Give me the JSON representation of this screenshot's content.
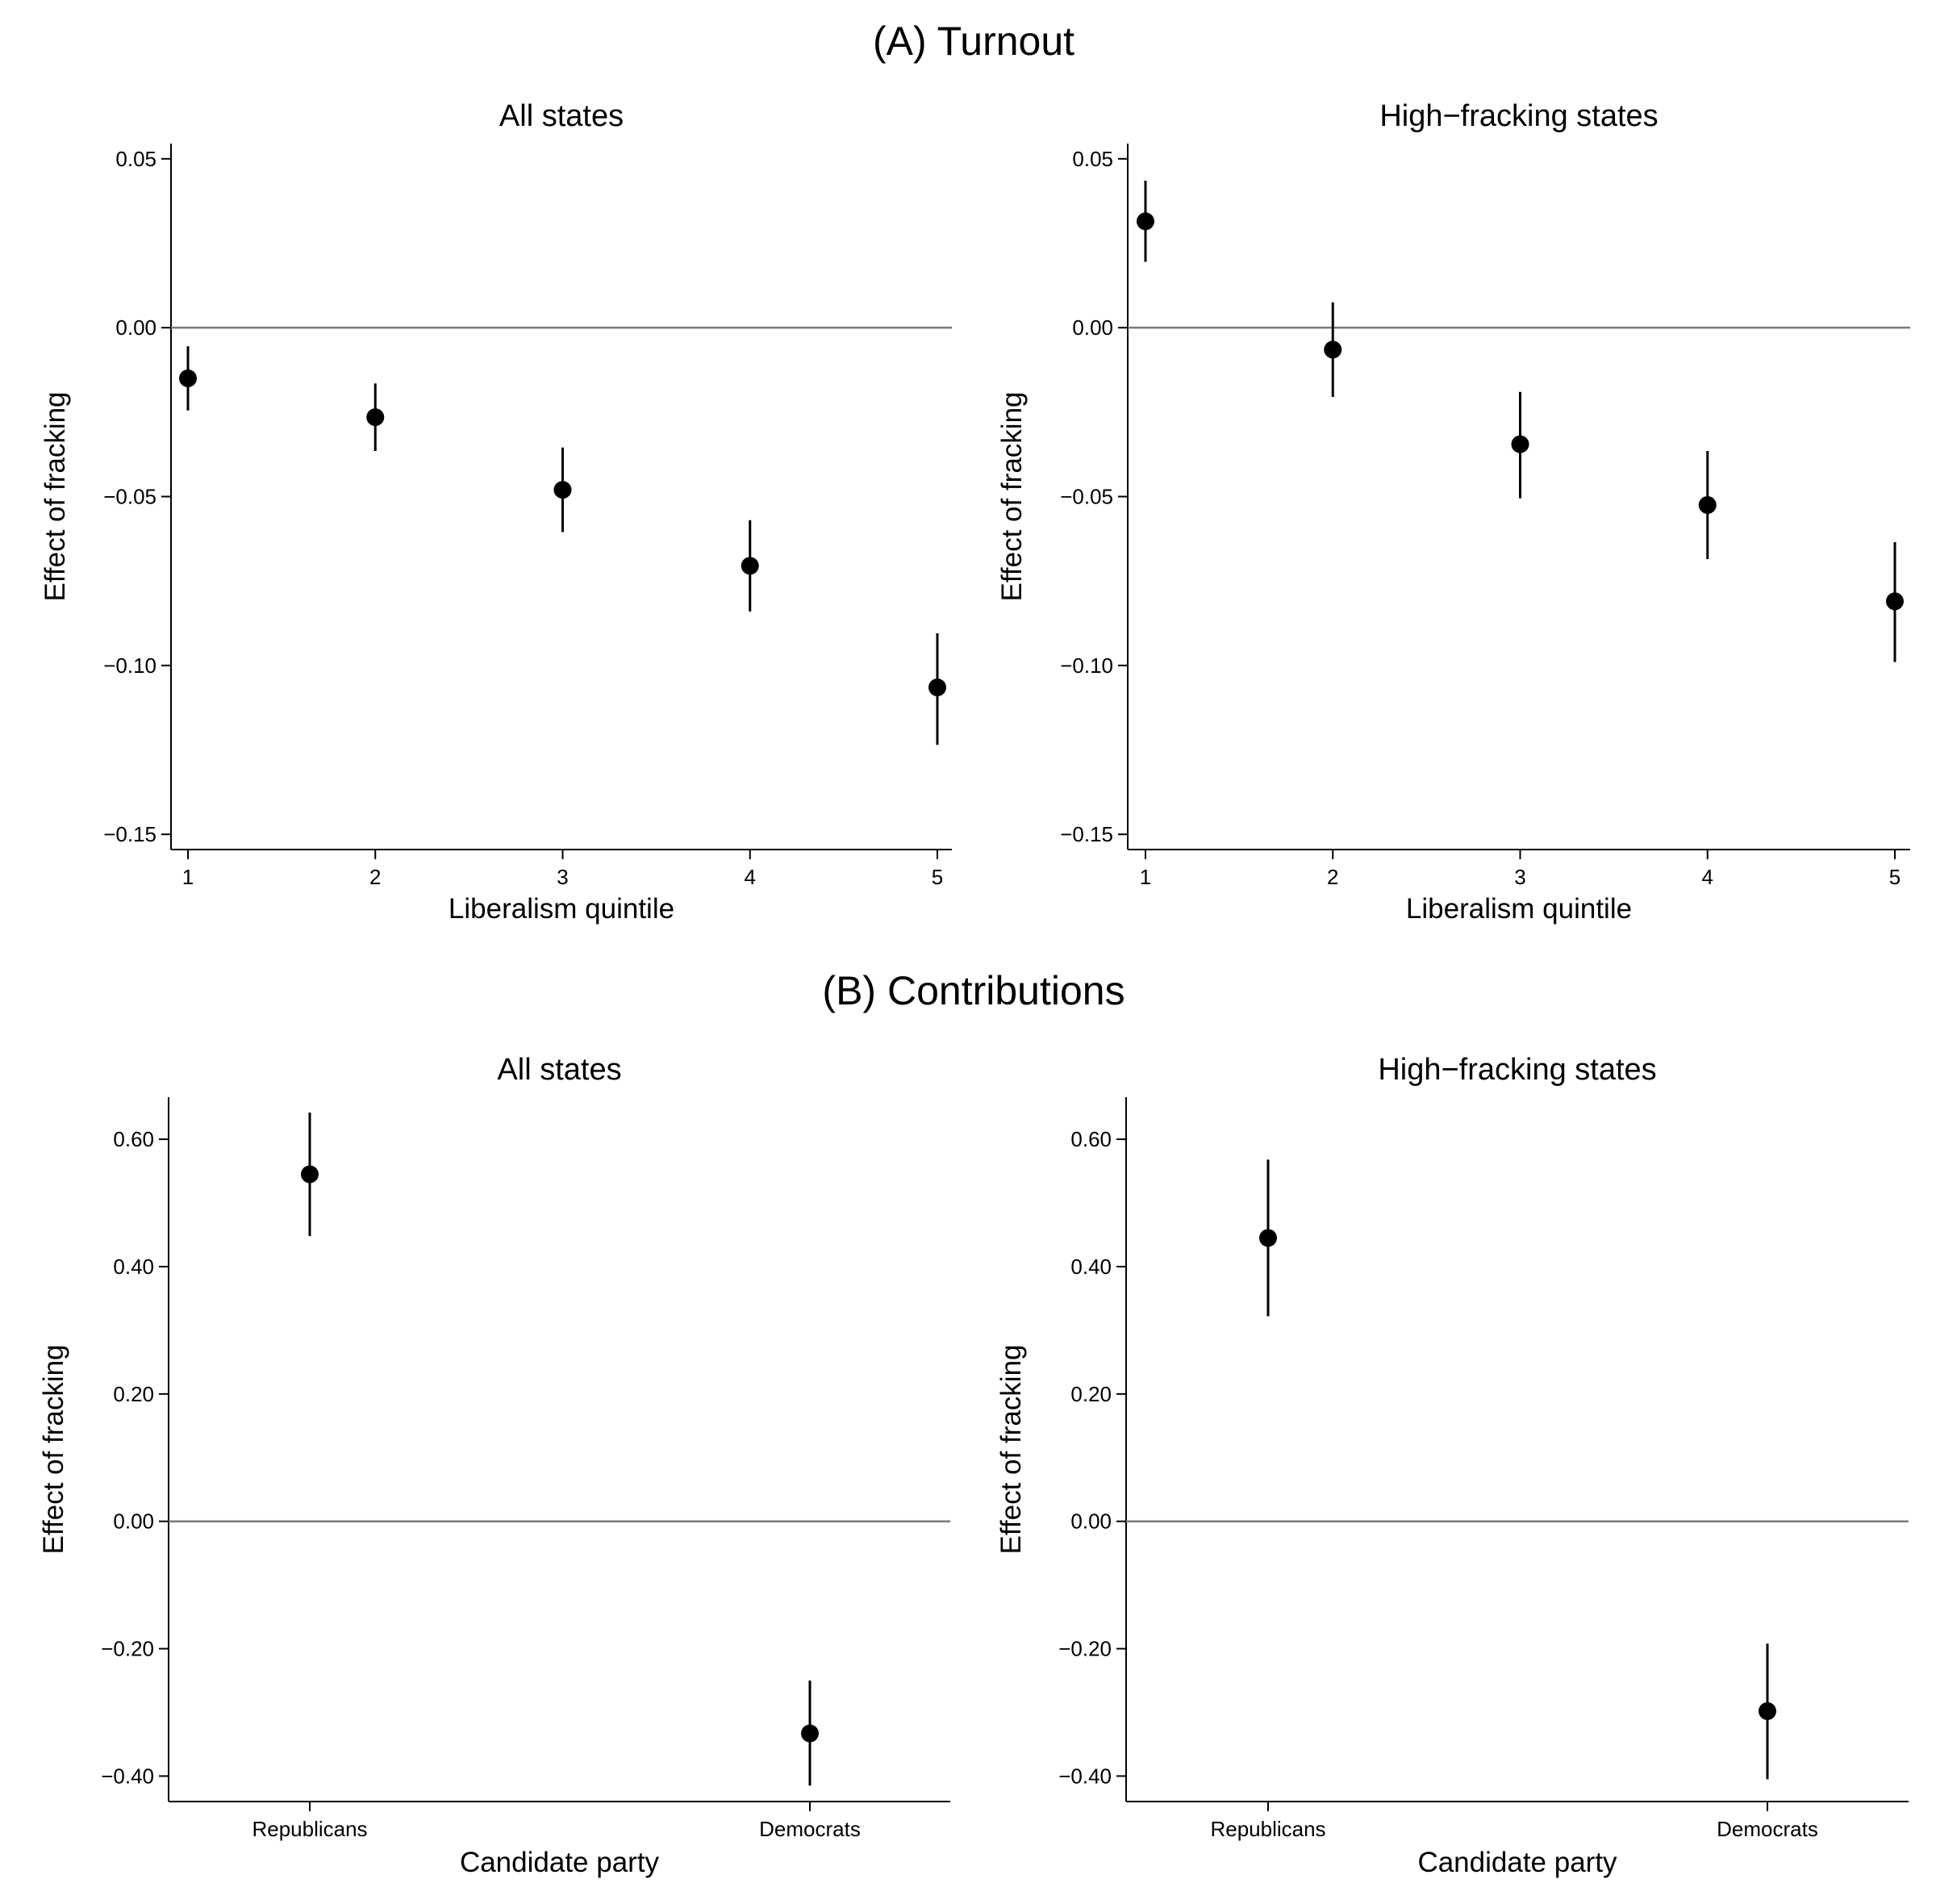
{
  "figure": {
    "panel_a_title": "(A) Turnout",
    "panel_b_title": "(B) Contributions"
  },
  "chart_data": [
    {
      "type": "scatter",
      "panel": "A",
      "title": "All states",
      "xlabel": "Liberalism quintile",
      "ylabel": "Effect of fracking",
      "categories": [
        "1",
        "2",
        "3",
        "4",
        "5"
      ],
      "values": [
        -0.015,
        -0.0265,
        -0.048,
        -0.0705,
        -0.1065
      ],
      "ci_low": [
        -0.0245,
        -0.0365,
        -0.0605,
        -0.084,
        -0.1235
      ],
      "ci_high": [
        -0.0055,
        -0.0165,
        -0.0355,
        -0.057,
        -0.0905
      ],
      "yticks": [
        0.05,
        0.0,
        -0.05,
        -0.1,
        -0.15
      ],
      "ytick_labels": [
        "0.05",
        "0.00",
        "−0.05",
        "−0.10",
        "−0.15"
      ],
      "ylim": [
        -0.1545,
        0.0545
      ],
      "reference_line": 0,
      "grid": false
    },
    {
      "type": "scatter",
      "panel": "A",
      "title": "High−fracking states",
      "xlabel": "Liberalism quintile",
      "ylabel": "Effect of fracking",
      "categories": [
        "1",
        "2",
        "3",
        "4",
        "5"
      ],
      "values": [
        0.0315,
        -0.0065,
        -0.0345,
        -0.0525,
        -0.081
      ],
      "ci_low": [
        0.0195,
        -0.0205,
        -0.0505,
        -0.0685,
        -0.099
      ],
      "ci_high": [
        0.0435,
        0.0075,
        -0.019,
        -0.0365,
        -0.0635
      ],
      "yticks": [
        0.05,
        0.0,
        -0.05,
        -0.1,
        -0.15
      ],
      "ytick_labels": [
        "0.05",
        "0.00",
        "−0.05",
        "−0.10",
        "−0.15"
      ],
      "ylim": [
        -0.1545,
        0.0545
      ],
      "reference_line": 0,
      "grid": false
    },
    {
      "type": "scatter",
      "panel": "B",
      "title": "All states",
      "xlabel": "Candidate party",
      "ylabel": "Effect of fracking",
      "categories": [
        "Republicans",
        "Democrats"
      ],
      "values": [
        0.545,
        -0.333
      ],
      "ci_low": [
        0.448,
        -0.415
      ],
      "ci_high": [
        0.642,
        -0.25
      ],
      "yticks": [
        0.6,
        0.4,
        0.2,
        0.0,
        -0.2,
        -0.4
      ],
      "ytick_labels": [
        "0.60",
        "0.40",
        "0.20",
        "0.00",
        "−0.20",
        "−0.40"
      ],
      "ylim": [
        -0.44,
        0.666
      ],
      "reference_line": 0,
      "grid": false
    },
    {
      "type": "scatter",
      "panel": "B",
      "title": "High−fracking states",
      "xlabel": "Candidate party",
      "ylabel": "Effect of fracking",
      "categories": [
        "Republicans",
        "Democrats"
      ],
      "values": [
        0.445,
        -0.298
      ],
      "ci_low": [
        0.322,
        -0.405
      ],
      "ci_high": [
        0.568,
        -0.192
      ],
      "yticks": [
        0.6,
        0.4,
        0.2,
        0.0,
        -0.2,
        -0.4
      ],
      "ytick_labels": [
        "0.60",
        "0.40",
        "0.20",
        "0.00",
        "−0.20",
        "−0.40"
      ],
      "ylim": [
        -0.44,
        0.666
      ],
      "reference_line": 0,
      "grid": false
    }
  ]
}
